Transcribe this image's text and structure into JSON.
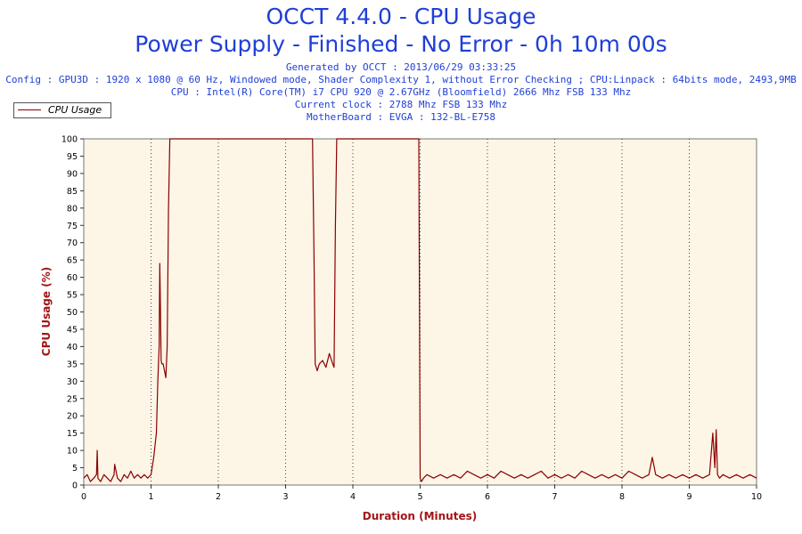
{
  "header": {
    "title": "OCCT 4.4.0 - CPU Usage",
    "subtitle": "Power Supply - Finished - No Error - 0h 10m 00s",
    "info_lines": [
      "Generated by OCCT : 2013/06/29 03:33:25",
      "Config : GPU3D : 1920 x 1080 @ 60 Hz, Windowed mode, Shader Complexity 1, without Error Checking ; CPU:Linpack : 64bits mode, 2493,9MB",
      "CPU : Intel(R) Core(TM) i7 CPU 920 @ 2.67GHz (Bloomfield) 2666 Mhz FSB 133 Mhz",
      "Current clock : 2788 Mhz FSB 133 Mhz",
      "MotherBoard : EVGA : 132-BL-E758"
    ]
  },
  "legend": {
    "label": "CPU Usage"
  },
  "chart_data": {
    "type": "line",
    "xlabel": "Duration (Minutes)",
    "ylabel": "CPU Usage (%)",
    "xlim": [
      0,
      10
    ],
    "ylim": [
      0,
      100
    ],
    "xticks": [
      "0",
      "1",
      "2",
      "3",
      "4",
      "5",
      "6",
      "7",
      "8",
      "9",
      "10"
    ],
    "yticks": [
      "0",
      "5",
      "10",
      "15",
      "20",
      "25",
      "30",
      "35",
      "40",
      "45",
      "50",
      "55",
      "60",
      "65",
      "70",
      "75",
      "80",
      "85",
      "90",
      "95",
      "100"
    ],
    "grid": "vertical dotted",
    "legend_position": "top-left",
    "series": [
      {
        "name": "CPU Usage",
        "color": "#8b0000",
        "x": [
          0,
          0.05,
          0.1,
          0.15,
          0.19,
          0.2,
          0.21,
          0.25,
          0.3,
          0.35,
          0.4,
          0.45,
          0.46,
          0.5,
          0.55,
          0.6,
          0.65,
          0.7,
          0.75,
          0.8,
          0.85,
          0.9,
          0.95,
          1.0,
          1.04,
          1.08,
          1.1,
          1.12,
          1.13,
          1.14,
          1.15,
          1.16,
          1.18,
          1.2,
          1.22,
          1.24,
          1.26,
          1.28,
          1.3,
          1.5,
          2.0,
          2.5,
          3.0,
          3.4,
          3.42,
          3.44,
          3.47,
          3.5,
          3.55,
          3.6,
          3.65,
          3.7,
          3.72,
          3.74,
          3.76,
          3.8,
          4.0,
          4.5,
          4.98,
          5.0,
          5.02,
          5.05,
          5.1,
          5.2,
          5.3,
          5.4,
          5.5,
          5.6,
          5.7,
          5.8,
          5.9,
          6.0,
          6.1,
          6.2,
          6.3,
          6.4,
          6.5,
          6.6,
          6.7,
          6.8,
          6.9,
          7.0,
          7.1,
          7.2,
          7.3,
          7.4,
          7.5,
          7.6,
          7.7,
          7.8,
          7.9,
          8.0,
          8.1,
          8.2,
          8.3,
          8.4,
          8.45,
          8.5,
          8.6,
          8.7,
          8.8,
          8.9,
          9.0,
          9.1,
          9.2,
          9.3,
          9.35,
          9.38,
          9.4,
          9.42,
          9.45,
          9.5,
          9.6,
          9.7,
          9.8,
          9.9,
          10.0
        ],
        "y": [
          2,
          3,
          1,
          2,
          3,
          10,
          2,
          1,
          3,
          2,
          1,
          3,
          6,
          2,
          1,
          3,
          2,
          4,
          2,
          3,
          2,
          3,
          2,
          3,
          8,
          15,
          30,
          40,
          64,
          50,
          36,
          35,
          35,
          33,
          31,
          40,
          80,
          100,
          100,
          100,
          100,
          100,
          100,
          100,
          70,
          35,
          33,
          35,
          36,
          34,
          38,
          35,
          34,
          75,
          100,
          100,
          100,
          100,
          100,
          2,
          1,
          2,
          3,
          2,
          3,
          2,
          3,
          2,
          4,
          3,
          2,
          3,
          2,
          4,
          3,
          2,
          3,
          2,
          3,
          4,
          2,
          3,
          2,
          3,
          2,
          4,
          3,
          2,
          3,
          2,
          3,
          2,
          4,
          3,
          2,
          3,
          8,
          3,
          2,
          3,
          2,
          3,
          2,
          3,
          2,
          3,
          15,
          5,
          16,
          3,
          2,
          3,
          2,
          3,
          2,
          3,
          2
        ]
      }
    ]
  }
}
